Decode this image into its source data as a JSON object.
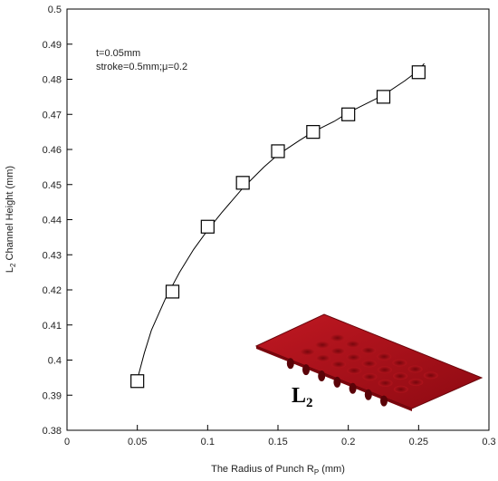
{
  "chart_data": {
    "type": "scatter",
    "xlabel": "The Radius of Punch R",
    "xlabel_sub": "P",
    "xlabel_unit": " (mm)",
    "ylabel": "L",
    "ylabel_sub": "2",
    "ylabel_rest": " Channel Height (mm)",
    "xlim": [
      0,
      0.3
    ],
    "ylim": [
      0.38,
      0.5
    ],
    "x_ticks": [
      "0",
      "0.05",
      "0.1",
      "0.15",
      "0.2",
      "0.25",
      "0.3"
    ],
    "y_ticks": [
      "0.38",
      "0.39",
      "0.4",
      "0.41",
      "0.42",
      "0.43",
      "0.44",
      "0.45",
      "0.46",
      "0.47",
      "0.48",
      "0.49",
      "0.5"
    ],
    "grid": false,
    "annotations": [
      "t=0.05mm",
      "stroke=0.5mm;μ=0.2"
    ],
    "series": [
      {
        "marker": "open-square",
        "x": [
          0.05,
          0.075,
          0.1,
          0.125,
          0.15,
          0.175,
          0.2,
          0.225,
          0.25
        ],
        "y": [
          0.394,
          0.4195,
          0.438,
          0.4505,
          0.4595,
          0.465,
          0.47,
          0.475,
          0.482
        ]
      }
    ],
    "fit_curve": {
      "x": [
        0.05,
        0.055,
        0.06,
        0.07,
        0.08,
        0.09,
        0.1,
        0.11,
        0.125,
        0.14,
        0.15,
        0.165,
        0.175,
        0.19,
        0.2,
        0.215,
        0.225,
        0.24,
        0.25,
        0.254
      ],
      "y": [
        0.3945,
        0.402,
        0.4085,
        0.4175,
        0.425,
        0.4315,
        0.437,
        0.442,
        0.449,
        0.455,
        0.4585,
        0.4625,
        0.465,
        0.468,
        0.4705,
        0.4735,
        0.4755,
        0.4795,
        0.4825,
        0.4845
      ]
    },
    "inset": {
      "label": "L",
      "label_sub": "2",
      "color": "#b01018"
    }
  }
}
